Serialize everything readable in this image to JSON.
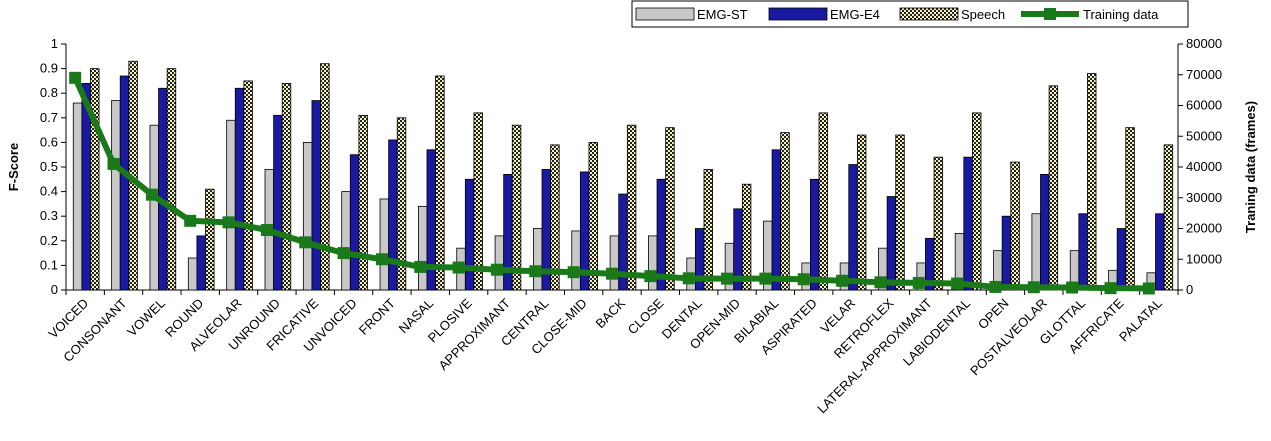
{
  "chart_data": {
    "type": "bar",
    "ylabel": "F-Score",
    "y2label": "Traning data (frames)",
    "ylim": [
      0,
      1
    ],
    "y2lim": [
      0,
      80000
    ],
    "yticks": [
      "0",
      "0.1",
      "0.2",
      "0.3",
      "0.4",
      "0.5",
      "0.6",
      "0.7",
      "0.8",
      "0.9",
      "1"
    ],
    "y2ticks": [
      "0",
      "10000",
      "20000",
      "30000",
      "40000",
      "50000",
      "60000",
      "70000",
      "80000"
    ],
    "grid": false,
    "legend_position": "top-right",
    "categories": [
      "VOICED",
      "CONSONANT",
      "VOWEL",
      "ROUND",
      "ALVEOLAR",
      "UNROUND",
      "FRICATIVE",
      "UNVOICED",
      "FRONT",
      "NASAL",
      "PLOSIVE",
      "APPROXIMANT",
      "CENTRAL",
      "CLOSE-MID",
      "BACK",
      "CLOSE",
      "DENTAL",
      "OPEN-MID",
      "BILABIAL",
      "ASPIRATED",
      "VELAR",
      "RETROFLEX",
      "LATERAL-APPROXIMANT",
      "LABIODENTAL",
      "OPEN",
      "POSTALVEOLAR",
      "GLOTTAL",
      "AFFRICATE",
      "PALATAL"
    ],
    "series": [
      {
        "name": "EMG-ST",
        "kind": "bar",
        "axis": "left",
        "color": "#c8c8c8",
        "values": [
          0.76,
          0.77,
          0.67,
          0.13,
          0.69,
          0.49,
          0.6,
          0.4,
          0.37,
          0.34,
          0.17,
          0.22,
          0.25,
          0.24,
          0.22,
          0.22,
          0.13,
          0.19,
          0.28,
          0.11,
          0.11,
          0.17,
          0.11,
          0.23,
          0.16,
          0.31,
          0.16,
          0.08,
          0.07
        ]
      },
      {
        "name": "EMG-E4",
        "kind": "bar",
        "axis": "left",
        "color": "#1a1aa0",
        "values": [
          0.84,
          0.87,
          0.82,
          0.22,
          0.82,
          0.71,
          0.77,
          0.55,
          0.61,
          0.57,
          0.45,
          0.47,
          0.49,
          0.48,
          0.39,
          0.45,
          0.25,
          0.33,
          0.57,
          0.45,
          0.51,
          0.38,
          0.21,
          0.54,
          0.3,
          0.47,
          0.31,
          0.25,
          0.31
        ]
      },
      {
        "name": "Speech",
        "kind": "bar",
        "axis": "left",
        "color": "#e8e0a0",
        "values": [
          0.9,
          0.93,
          0.9,
          0.41,
          0.85,
          0.84,
          0.92,
          0.71,
          0.7,
          0.87,
          0.72,
          0.67,
          0.59,
          0.6,
          0.67,
          0.66,
          0.49,
          0.43,
          0.64,
          0.72,
          0.63,
          0.63,
          0.54,
          0.72,
          0.52,
          0.83,
          0.88,
          0.66,
          0.59
        ]
      },
      {
        "name": "Training data",
        "kind": "line",
        "axis": "right",
        "color": "#1a7a1a",
        "values": [
          69000,
          41000,
          31000,
          22500,
          22000,
          19500,
          15500,
          12000,
          10000,
          7500,
          7300,
          6600,
          6100,
          5800,
          5300,
          4500,
          3800,
          3700,
          3700,
          3500,
          3000,
          2500,
          2300,
          2100,
          1000,
          900,
          800,
          600,
          500
        ]
      }
    ]
  }
}
